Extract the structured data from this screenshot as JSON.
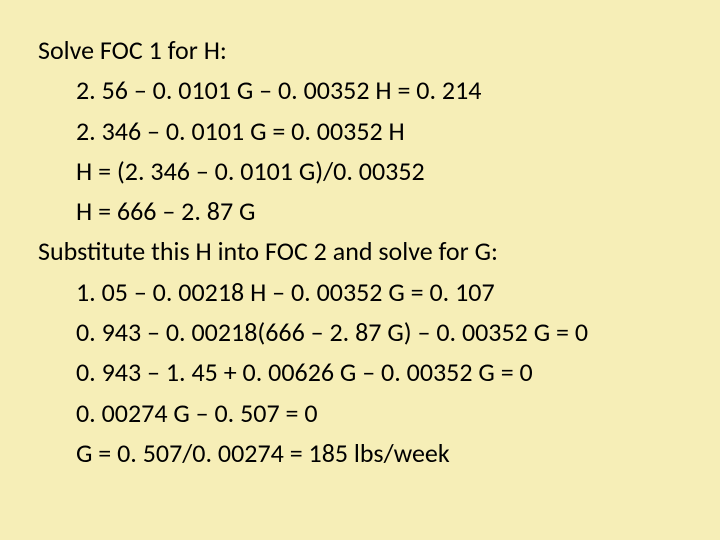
{
  "slide": {
    "background_color": "#f6eeb7",
    "text_color": "#000000",
    "font_family": "Calibri",
    "font_size_pt": 20,
    "lines": [
      {
        "text": "Solve FOC 1 for H:",
        "indent": false
      },
      {
        "text": "2. 56 – 0. 0101 G – 0. 00352 H = 0. 214",
        "indent": true
      },
      {
        "text": "2. 346 – 0. 0101 G = 0. 00352 H",
        "indent": true
      },
      {
        "text": "H = (2. 346 – 0. 0101 G)/0. 00352",
        "indent": true
      },
      {
        "text": "H = 666 – 2. 87 G",
        "indent": true
      },
      {
        "text": "Substitute this H into FOC 2 and solve for G:",
        "indent": false
      },
      {
        "text": "1. 05 – 0. 00218 H – 0. 00352 G = 0. 107",
        "indent": true
      },
      {
        "text": "0. 943 – 0. 00218(666 – 2. 87 G) – 0. 00352 G = 0",
        "indent": true
      },
      {
        "text": "0. 943 – 1. 45 + 0. 00626 G – 0. 00352 G  = 0",
        "indent": true
      },
      {
        "text": "0. 00274 G – 0. 507 = 0",
        "indent": true
      },
      {
        "text": "G = 0. 507/0. 00274 = 185 lbs/week",
        "indent": true
      }
    ]
  }
}
